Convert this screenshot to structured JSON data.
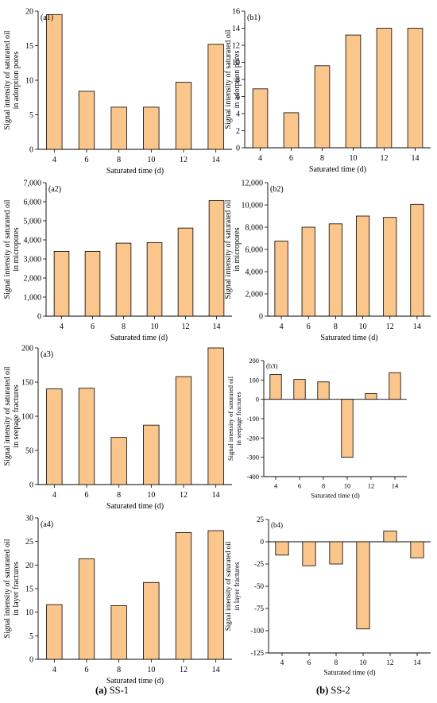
{
  "colors": {
    "bar": "#fbc68c",
    "axis": "#000000"
  },
  "captions": [
    {
      "label": "(a)",
      "text": "SS-1"
    },
    {
      "label": "(b)",
      "text": "SS-2"
    }
  ],
  "chart_data": [
    {
      "id": "a1",
      "type": "bar",
      "panel_label": "(a1)",
      "categories": [
        "4",
        "6",
        "8",
        "10",
        "12",
        "14"
      ],
      "values": [
        19.5,
        8.4,
        6.1,
        6.1,
        9.7,
        15.2
      ],
      "ylim": [
        0,
        20
      ],
      "yticks": [
        "0",
        "5",
        "10",
        "15",
        "20"
      ],
      "xlabel": "Saturated time (d)",
      "ylabel": [
        "Signal intensity of saturated oil",
        "in adorption pores"
      ]
    },
    {
      "id": "b1",
      "type": "bar",
      "panel_label": "(b1)",
      "categories": [
        "4",
        "6",
        "8",
        "10",
        "12",
        "14"
      ],
      "values": [
        6.9,
        4.1,
        9.6,
        13.2,
        14.0,
        14.0
      ],
      "ylim": [
        0,
        16
      ],
      "yticks": [
        "0",
        "2",
        "4",
        "6",
        "8",
        "10",
        "12",
        "14",
        "16"
      ],
      "xlabel": "Saturated time (d)",
      "ylabel": [
        "Signal intensity of saturated oil",
        "in adorption pores"
      ]
    },
    {
      "id": "a2",
      "type": "bar",
      "panel_label": "(a2)",
      "categories": [
        "4",
        "6",
        "8",
        "10",
        "12",
        "14"
      ],
      "values": [
        3400,
        3400,
        3830,
        3860,
        4620,
        6060
      ],
      "ylim": [
        0,
        7000
      ],
      "yticks": [
        "0",
        "1,000",
        "2,000",
        "3,000",
        "4,000",
        "5,000",
        "6,000",
        "7,000"
      ],
      "xlabel": "Saturated time (d)",
      "ylabel": [
        "Signal intensity of saturated oil",
        "in micropores"
      ]
    },
    {
      "id": "b2",
      "type": "bar",
      "panel_label": "(b2)",
      "categories": [
        "4",
        "6",
        "8",
        "10",
        "12",
        "14"
      ],
      "values": [
        6750,
        8000,
        8300,
        9000,
        8880,
        10050
      ],
      "ylim": [
        0,
        12000
      ],
      "yticks": [
        "0",
        "2,000",
        "4,000",
        "6,000",
        "8,000",
        "10,000",
        "12,000"
      ],
      "xlabel": "Saturated time (d)",
      "ylabel": [
        "Signal intensity of saturated oil",
        "in micropores"
      ]
    },
    {
      "id": "a3",
      "type": "bar",
      "panel_label": "(a3)",
      "categories": [
        "4",
        "6",
        "8",
        "10",
        "12",
        "14"
      ],
      "values": [
        140,
        141,
        69,
        87,
        158,
        200
      ],
      "ylim": [
        0,
        200
      ],
      "yticks": [
        "0",
        "50",
        "100",
        "150",
        "200"
      ],
      "xlabel": "Saturated time (d)",
      "ylabel": [
        "Signal intensity of saturated oil",
        "in seepage fractures"
      ]
    },
    {
      "id": "b3",
      "type": "bar",
      "panel_label": "(b3)",
      "categories": [
        "4",
        "6",
        "8",
        "10",
        "12",
        "14"
      ],
      "values": [
        128,
        103,
        90,
        -300,
        30,
        138
      ],
      "ylim": [
        -400,
        200
      ],
      "yticks": [
        "-400",
        "-300",
        "-200",
        "-100",
        "0",
        "100",
        "200"
      ],
      "xlabel": "Saturated time (d)",
      "ylabel": [
        "Signal intensity of saturated oil",
        "in seepage fractures"
      ]
    },
    {
      "id": "a4",
      "type": "bar",
      "panel_label": "(a4)",
      "categories": [
        "4",
        "6",
        "8",
        "10",
        "12",
        "14"
      ],
      "values": [
        11.6,
        21.3,
        11.4,
        16.3,
        26.9,
        27.3
      ],
      "ylim": [
        0,
        30
      ],
      "yticks": [
        "0",
        "5",
        "10",
        "15",
        "20",
        "25",
        "30"
      ],
      "xlabel": "Saturated time (d)",
      "ylabel": [
        "Signal intensity of saturated oil",
        "in layer fractures"
      ]
    },
    {
      "id": "b4",
      "type": "bar",
      "panel_label": "(b4)",
      "categories": [
        "4",
        "6",
        "8",
        "10",
        "12",
        "14"
      ],
      "values": [
        -15,
        -27,
        -25,
        -98,
        12,
        -18
      ],
      "ylim": [
        -125,
        25
      ],
      "yticks": [
        "-125",
        "-100",
        "-75",
        "-50",
        "-25",
        "0",
        "25"
      ],
      "xlabel": "Saturated time (d)",
      "ylabel": [
        "Signal intensity of saturated oil",
        "in layer fractures"
      ]
    }
  ]
}
